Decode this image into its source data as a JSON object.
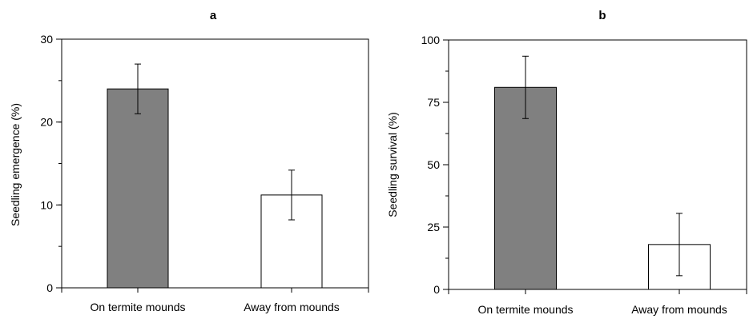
{
  "chart_data": [
    {
      "type": "bar",
      "title": "a",
      "categories": [
        "On termite mounds",
        "Away from mounds"
      ],
      "values": [
        24.0,
        11.2
      ],
      "error": [
        3.0,
        3.0
      ],
      "bar_colors": [
        "#808080",
        "#ffffff"
      ],
      "ylabel": "Seedling emergence (%)",
      "xlabel": "",
      "ylim": [
        0,
        30
      ],
      "yticks": [
        0,
        10,
        20,
        30
      ],
      "minor_step": 5,
      "grid": false
    },
    {
      "type": "bar",
      "title": "b",
      "categories": [
        "On termite mounds",
        "Away from mounds"
      ],
      "values": [
        81,
        18
      ],
      "error": [
        12.5,
        12.5
      ],
      "bar_colors": [
        "#808080",
        "#ffffff"
      ],
      "ylabel": "Seedling survival (%)",
      "xlabel": "",
      "ylim": [
        0,
        100
      ],
      "yticks": [
        0,
        25,
        50,
        75,
        100
      ],
      "minor_step": 12.5,
      "grid": false
    }
  ]
}
